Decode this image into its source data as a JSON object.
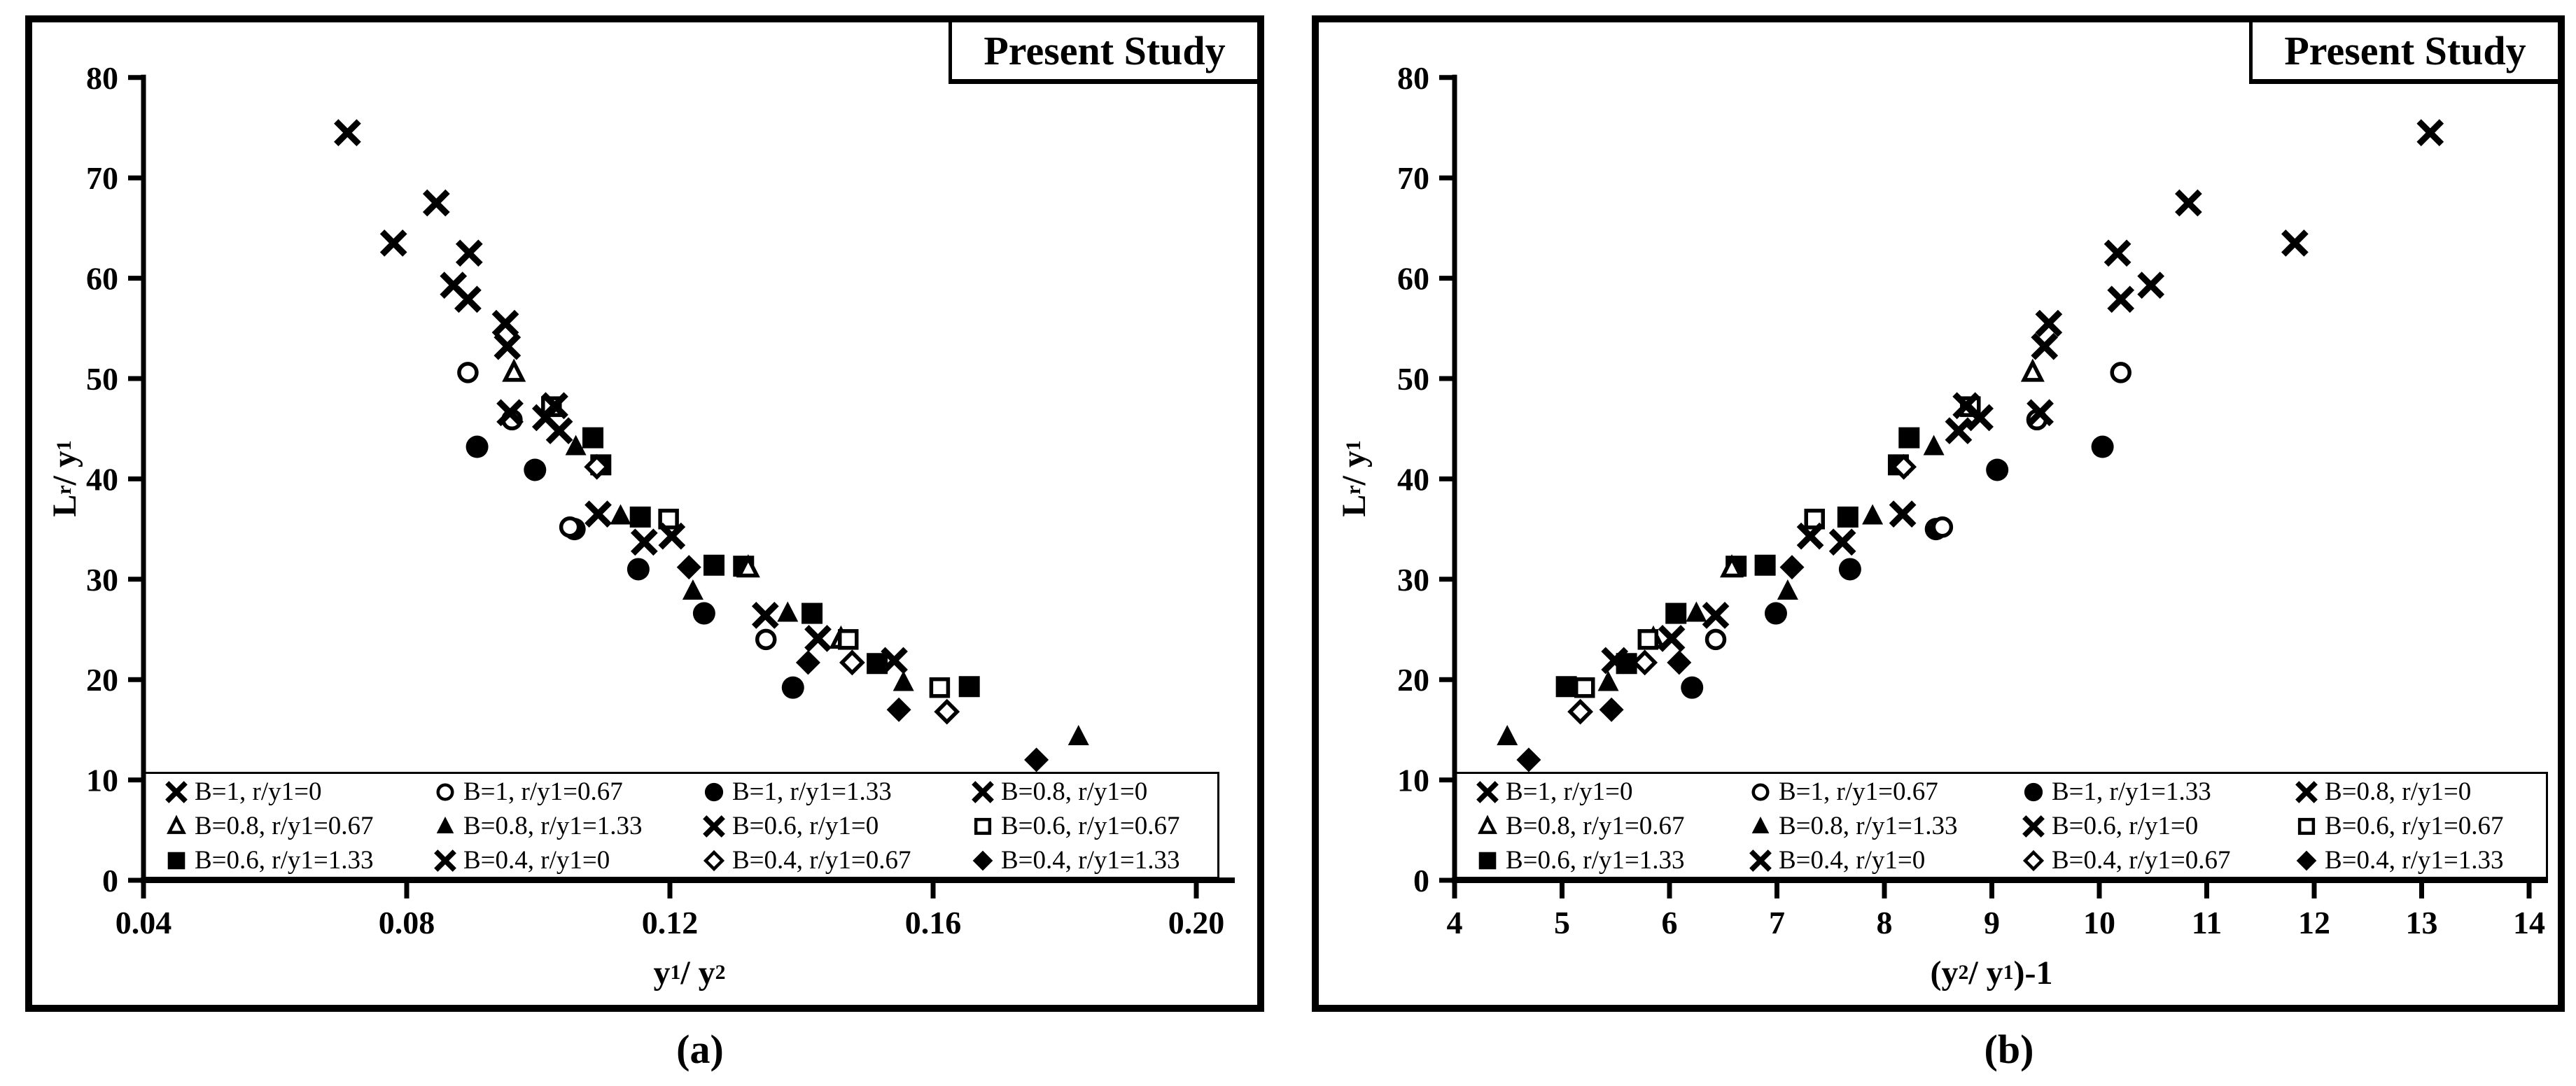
{
  "figure": {
    "background": "#ffffff",
    "ink_color": "#000000",
    "panel_titles": [
      "Present Study",
      "Present Study"
    ],
    "captions": [
      "(a)",
      "(b)"
    ]
  },
  "legend": {
    "entries": [
      {
        "marker": "x",
        "label": "B=1, r/y1=0"
      },
      {
        "marker": "circle-open",
        "label": "B=1, r/y1=0.67"
      },
      {
        "marker": "circle-filled",
        "label": "B=1, r/y1=1.33"
      },
      {
        "marker": "x",
        "label": "B=0.8, r/y1=0"
      },
      {
        "marker": "triangle-open",
        "label": "B=0.8, r/y1=0.67"
      },
      {
        "marker": "triangle-filled",
        "label": "B=0.8, r/y1=1.33"
      },
      {
        "marker": "x",
        "label": "B=0.6, r/y1=0"
      },
      {
        "marker": "square-open",
        "label": "B=0.6, r/y1=0.67"
      },
      {
        "marker": "square-filled",
        "label": "B=0.6, r/y1=1.33"
      },
      {
        "marker": "x",
        "label": "B=0.4, r/y1=0"
      },
      {
        "marker": "diamond-open",
        "label": "B=0.4, r/y1=0.67"
      },
      {
        "marker": "diamond-filled",
        "label": "B=0.4, r/y1=1.33"
      }
    ]
  },
  "chart_data": [
    {
      "type": "scatter",
      "title": "Present Study",
      "xlabel": "y1 / y2",
      "ylabel": "Lr / y1",
      "xlabel_parts": [
        [
          "y",
          0
        ],
        [
          "1",
          1
        ],
        [
          " / y",
          0
        ],
        [
          "2",
          1
        ]
      ],
      "ylabel_parts": [
        [
          "L",
          0
        ],
        [
          "r",
          1
        ],
        [
          " / y",
          0
        ],
        [
          "1",
          1
        ]
      ],
      "xlim": [
        0.04,
        0.2
      ],
      "ylim": [
        0,
        80
      ],
      "xticks": [
        "0.04",
        "0.08",
        "0.12",
        "0.16",
        "0.20"
      ],
      "xtick_values": [
        0.04,
        0.08,
        0.12,
        0.16,
        0.2
      ],
      "yticks": [
        "0",
        "10",
        "20",
        "30",
        "40",
        "50",
        "60",
        "70",
        "80"
      ],
      "ytick_values": [
        0,
        10,
        20,
        30,
        40,
        50,
        60,
        70,
        80
      ],
      "grid": false,
      "legend_position": "bottom-inside",
      "series": [
        {
          "name": "B=1, r/y1=0",
          "marker": "x",
          "points": [
            [
              0.071,
              74.5
            ],
            [
              0.0845,
              67.5
            ],
            [
              0.0895,
              62.5
            ],
            [
              0.095,
              55.5
            ]
          ]
        },
        {
          "name": "B=1, r/y1=0.67",
          "marker": "circle-open",
          "points": [
            [
              0.0893,
              50.6
            ],
            [
              0.096,
              45.9
            ],
            [
              0.1048,
              35.2
            ],
            [
              0.1346,
              24.0
            ]
          ]
        },
        {
          "name": "B=1, r/y1=1.33",
          "marker": "circle-filled",
          "points": [
            [
              0.0907,
              43.2
            ],
            [
              0.0995,
              40.9
            ],
            [
              0.1055,
              35.0
            ],
            [
              0.1152,
              31.0
            ],
            [
              0.1252,
              26.6
            ],
            [
              0.1387,
              19.2
            ]
          ]
        },
        {
          "name": "B=0.8, r/y1=0",
          "marker": "x",
          "points": [
            [
              0.078,
              63.5
            ],
            [
              0.0871,
              59.3
            ],
            [
              0.0893,
              57.9
            ],
            [
              0.0953,
              53.2
            ]
          ]
        },
        {
          "name": "B=0.8, r/y1=0.67",
          "marker": "triangle-open",
          "points": [
            [
              0.0963,
              50.6
            ],
            [
              0.1319,
              31.1
            ],
            [
              0.146,
              24.0
            ]
          ]
        },
        {
          "name": "B=0.8, r/y1=1.33",
          "marker": "triangle-filled",
          "points": [
            [
              0.1057,
              43.2
            ],
            [
              0.1125,
              36.3
            ],
            [
              0.1235,
              28.8
            ],
            [
              0.1379,
              26.6
            ],
            [
              0.1555,
              19.7
            ],
            [
              0.1821,
              14.3
            ]
          ]
        },
        {
          "name": "B=0.6, r/y1=0",
          "marker": "x",
          "points": [
            [
              0.0957,
              46.6
            ],
            [
              0.1011,
              46.1
            ],
            [
              0.1032,
              44.8
            ],
            [
              0.1091,
              36.5
            ],
            [
              0.1161,
              33.7
            ]
          ]
        },
        {
          "name": "B=0.6, r/y1=0.67",
          "marker": "square-open",
          "points": [
            [
              0.102,
              47.2
            ],
            [
              0.1198,
              36.0
            ],
            [
              0.1471,
              24.0
            ],
            [
              0.161,
              19.2
            ]
          ]
        },
        {
          "name": "B=0.6, r/y1=1.33",
          "marker": "square-filled",
          "points": [
            [
              0.1083,
              44.1
            ],
            [
              0.1095,
              41.4
            ],
            [
              0.1155,
              36.2
            ],
            [
              0.1267,
              31.4
            ],
            [
              0.1312,
              31.3
            ],
            [
              0.1416,
              26.6
            ],
            [
              0.1515,
              21.6
            ],
            [
              0.1655,
              19.3
            ]
          ]
        },
        {
          "name": "B=0.4, r/y1=0",
          "marker": "x",
          "points": [
            [
              0.1025,
              47.3
            ],
            [
              0.1203,
              34.3
            ],
            [
              0.1345,
              26.4
            ],
            [
              0.1425,
              24.1
            ],
            [
              0.1541,
              21.9
            ]
          ]
        },
        {
          "name": "B=0.4, r/y1=0.67",
          "marker": "diamond-open",
          "points": [
            [
              0.1089,
              41.2
            ],
            [
              0.1477,
              21.7
            ],
            [
              0.1621,
              16.8
            ]
          ]
        },
        {
          "name": "B=0.4, r/y1=1.33",
          "marker": "diamond-filled",
          "points": [
            [
              0.1229,
              31.2
            ],
            [
              0.141,
              21.7
            ],
            [
              0.1548,
              17.0
            ],
            [
              0.1757,
              12.0
            ]
          ]
        }
      ]
    },
    {
      "type": "scatter",
      "title": "Present Study",
      "xlabel": "(y2 / y1)-1",
      "ylabel": "Lr / y1",
      "xlabel_parts": [
        [
          "(y",
          0
        ],
        [
          "2",
          1
        ],
        [
          " / y",
          0
        ],
        [
          "1",
          1
        ],
        [
          ")-1",
          0
        ]
      ],
      "ylabel_parts": [
        [
          "L",
          0
        ],
        [
          "r",
          1
        ],
        [
          " / y",
          0
        ],
        [
          "1",
          1
        ]
      ],
      "xlim": [
        4,
        14
      ],
      "ylim": [
        0,
        80
      ],
      "xticks": [
        "4",
        "5",
        "6",
        "7",
        "8",
        "9",
        "10",
        "11",
        "12",
        "13",
        "14"
      ],
      "xtick_values": [
        4,
        5,
        6,
        7,
        8,
        9,
        10,
        11,
        12,
        13,
        14
      ],
      "yticks": [
        "0",
        "10",
        "20",
        "30",
        "40",
        "50",
        "60",
        "70",
        "80"
      ],
      "ytick_values": [
        0,
        10,
        20,
        30,
        40,
        50,
        60,
        70,
        80
      ],
      "grid": false,
      "legend_position": "bottom-inside",
      "series": [
        {
          "name": "B=1, r/y1=0",
          "marker": "x",
          "points": [
            [
              13.08,
              74.5
            ],
            [
              10.83,
              67.5
            ],
            [
              10.17,
              62.5
            ],
            [
              9.53,
              55.5
            ]
          ]
        },
        {
          "name": "B=1, r/y1=0.67",
          "marker": "circle-open",
          "points": [
            [
              10.2,
              50.6
            ],
            [
              9.42,
              45.9
            ],
            [
              8.54,
              35.2
            ],
            [
              6.43,
              24.0
            ]
          ]
        },
        {
          "name": "B=1, r/y1=1.33",
          "marker": "circle-filled",
          "points": [
            [
              10.03,
              43.2
            ],
            [
              9.05,
              40.9
            ],
            [
              8.48,
              35.0
            ],
            [
              7.68,
              31.0
            ],
            [
              6.99,
              26.6
            ],
            [
              6.21,
              19.2
            ]
          ]
        },
        {
          "name": "B=0.8, r/y1=0",
          "marker": "x",
          "points": [
            [
              11.82,
              63.5
            ],
            [
              10.48,
              59.3
            ],
            [
              10.2,
              57.9
            ],
            [
              9.49,
              53.2
            ]
          ]
        },
        {
          "name": "B=0.8, r/y1=0.67",
          "marker": "triangle-open",
          "points": [
            [
              9.38,
              50.6
            ],
            [
              6.58,
              31.1
            ],
            [
              5.85,
              24.0
            ]
          ]
        },
        {
          "name": "B=0.8, r/y1=1.33",
          "marker": "triangle-filled",
          "points": [
            [
              8.46,
              43.2
            ],
            [
              7.89,
              36.3
            ],
            [
              7.1,
              28.8
            ],
            [
              6.25,
              26.6
            ],
            [
              5.43,
              19.7
            ],
            [
              4.49,
              14.3
            ]
          ]
        },
        {
          "name": "B=0.6, r/y1=0",
          "marker": "x",
          "points": [
            [
              9.45,
              46.6
            ],
            [
              8.89,
              46.1
            ],
            [
              8.69,
              44.8
            ],
            [
              8.17,
              36.5
            ],
            [
              7.61,
              33.7
            ]
          ]
        },
        {
          "name": "B=0.6, r/y1=0.67",
          "marker": "square-open",
          "points": [
            [
              8.8,
              47.2
            ],
            [
              7.35,
              36.0
            ],
            [
              5.8,
              24.0
            ],
            [
              5.21,
              19.2
            ]
          ]
        },
        {
          "name": "B=0.6, r/y1=1.33",
          "marker": "square-filled",
          "points": [
            [
              8.23,
              44.1
            ],
            [
              8.13,
              41.4
            ],
            [
              7.66,
              36.2
            ],
            [
              6.89,
              31.4
            ],
            [
              6.62,
              31.3
            ],
            [
              6.06,
              26.6
            ],
            [
              5.6,
              21.6
            ],
            [
              5.04,
              19.3
            ]
          ]
        },
        {
          "name": "B=0.4, r/y1=0",
          "marker": "x",
          "points": [
            [
              8.76,
              47.3
            ],
            [
              7.31,
              34.3
            ],
            [
              6.43,
              26.4
            ],
            [
              6.02,
              24.1
            ],
            [
              5.49,
              21.9
            ]
          ]
        },
        {
          "name": "B=0.4, r/y1=0.67",
          "marker": "diamond-open",
          "points": [
            [
              8.18,
              41.2
            ],
            [
              5.77,
              21.7
            ],
            [
              5.17,
              16.8
            ]
          ]
        },
        {
          "name": "B=0.4, r/y1=1.33",
          "marker": "diamond-filled",
          "points": [
            [
              7.14,
              31.2
            ],
            [
              6.09,
              21.7
            ],
            [
              5.46,
              17.0
            ],
            [
              4.69,
              12.0
            ]
          ]
        }
      ]
    }
  ]
}
